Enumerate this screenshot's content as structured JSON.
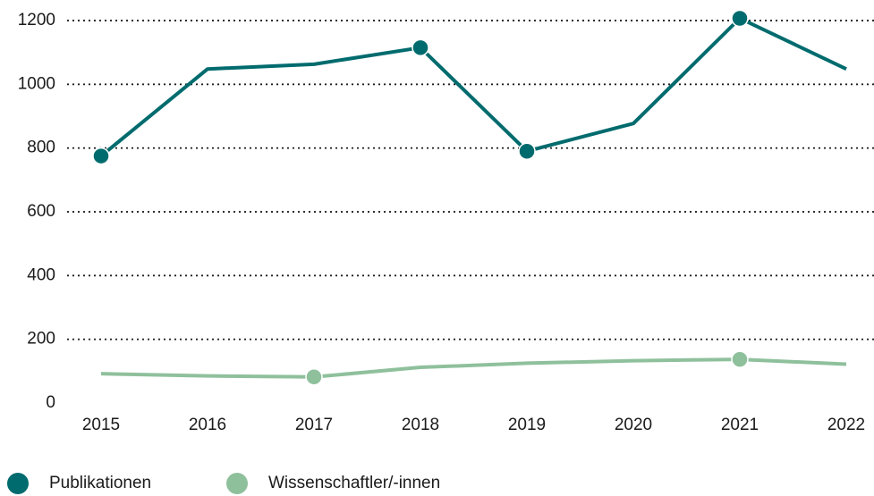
{
  "chart_data": {
    "type": "line",
    "categories": [
      "2015",
      "2016",
      "2017",
      "2018",
      "2019",
      "2020",
      "2021",
      "2022"
    ],
    "series": [
      {
        "name": "Publikationen",
        "color": "#006b6e",
        "values": [
          775,
          1048,
          1063,
          1115,
          790,
          877,
          1207,
          1048
        ],
        "marker_indices": [
          0,
          3,
          4,
          6
        ]
      },
      {
        "name": "Wissenschaftler/-innen",
        "color": "#8fc09c",
        "values": [
          92,
          85,
          82,
          112,
          125,
          133,
          137,
          122
        ],
        "marker_indices": [
          2,
          6
        ]
      }
    ],
    "ylim": [
      0,
      1200
    ],
    "yticks": [
      0,
      200,
      400,
      600,
      800,
      1000,
      1200
    ],
    "grid": true,
    "legend": "bottom"
  }
}
